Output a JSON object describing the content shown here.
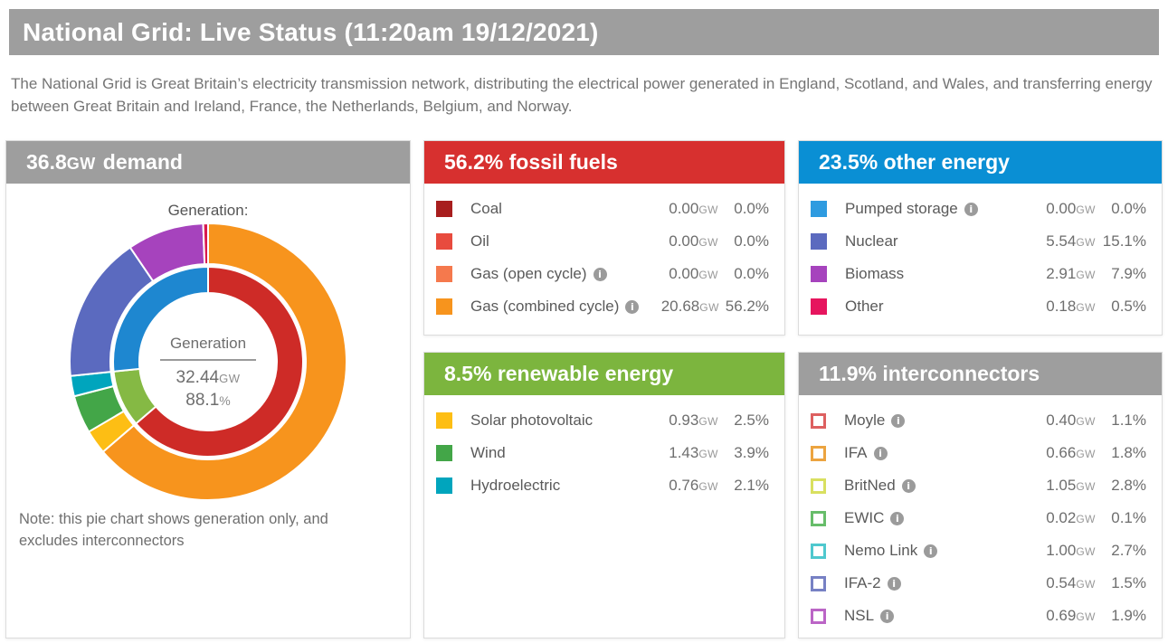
{
  "page": {
    "title": "National Grid: Live Status (11:20am 19/12/2021)",
    "description": "The National Grid is Great Britain’s electricity transmission network, distributing the electrical power generated in England, Scotland, and Wales, and transferring energy between Great Britain and Ireland, France, the Netherlands, Belgium, and Norway."
  },
  "units": {
    "gw": "GW",
    "pct": "%"
  },
  "demand_panel": {
    "header": {
      "value": "36.8",
      "unit": "GW",
      "suffix": "demand"
    },
    "chart_heading": "Generation:",
    "center": {
      "label": "Generation",
      "value": "32.44",
      "unit": "GW",
      "percent": "88.1",
      "percent_unit": "%"
    },
    "note": "Note: this pie chart shows generation only, and excludes interconnectors"
  },
  "chart_data": {
    "type": "pie",
    "title": "Generation:",
    "subtype": "two-ring donut, values are % of total demand (36.8GW), rendered clockwise from 12 o'clock",
    "center_label": "Generation",
    "center_value_gw": 32.44,
    "center_percent_of_demand": 88.1,
    "rings": [
      {
        "name": "groups",
        "position": "inner",
        "segments": [
          {
            "label": "fossil fuels",
            "percent": 56.2,
            "color": "#ce2b27"
          },
          {
            "label": "renewable energy",
            "percent": 8.5,
            "color": "#85b944"
          },
          {
            "label": "other energy",
            "percent": 23.5,
            "color": "#1e87d0"
          }
        ]
      },
      {
        "name": "sources",
        "position": "outer",
        "segments": [
          {
            "label": "Gas (combined cycle)",
            "percent": 56.2,
            "color": "#f7941d"
          },
          {
            "label": "Solar photovoltaic",
            "percent": 2.5,
            "color": "#fdbe14"
          },
          {
            "label": "Wind",
            "percent": 3.9,
            "color": "#43a648"
          },
          {
            "label": "Hydroelectric",
            "percent": 2.1,
            "color": "#00a5bd"
          },
          {
            "label": "Nuclear",
            "percent": 15.1,
            "color": "#5b6abf"
          },
          {
            "label": "Biomass",
            "percent": 7.9,
            "color": "#a643bd"
          },
          {
            "label": "Other",
            "percent": 0.5,
            "color": "#d81a4e"
          }
        ]
      }
    ]
  },
  "panels": {
    "fossil": {
      "header": "56.2% fossil fuels",
      "header_color": "#d7302f",
      "rows": [
        {
          "label": "Coal",
          "swatch": "#a81e1e",
          "filled": true,
          "info": false,
          "gw": "0.00",
          "pct": "0.0"
        },
        {
          "label": "Oil",
          "swatch": "#e84b3e",
          "filled": true,
          "info": false,
          "gw": "0.00",
          "pct": "0.0"
        },
        {
          "label": "Gas (open cycle)",
          "swatch": "#f5794d",
          "filled": true,
          "info": true,
          "gw": "0.00",
          "pct": "0.0"
        },
        {
          "label": "Gas (combined cycle)",
          "swatch": "#f7941d",
          "filled": true,
          "info": true,
          "gw": "20.68",
          "pct": "56.2"
        }
      ]
    },
    "other": {
      "header": "23.5% other energy",
      "header_color": "#0a8fd4",
      "rows": [
        {
          "label": "Pumped storage",
          "swatch": "#2e9be0",
          "filled": true,
          "info": true,
          "gw": "0.00",
          "pct": "0.0"
        },
        {
          "label": "Nuclear",
          "swatch": "#5b6abf",
          "filled": true,
          "info": false,
          "gw": "5.54",
          "pct": "15.1"
        },
        {
          "label": "Biomass",
          "swatch": "#a643bd",
          "filled": true,
          "info": false,
          "gw": "2.91",
          "pct": "7.9"
        },
        {
          "label": "Other",
          "swatch": "#e6155e",
          "filled": true,
          "info": false,
          "gw": "0.18",
          "pct": "0.5"
        }
      ]
    },
    "renewable": {
      "header": "8.5% renewable energy",
      "header_color": "#7cb53e",
      "rows": [
        {
          "label": "Solar photovoltaic",
          "swatch": "#fdbe14",
          "filled": true,
          "info": false,
          "gw": "0.93",
          "pct": "2.5"
        },
        {
          "label": "Wind",
          "swatch": "#43a648",
          "filled": true,
          "info": false,
          "gw": "1.43",
          "pct": "3.9"
        },
        {
          "label": "Hydroelectric",
          "swatch": "#00a5bd",
          "filled": true,
          "info": false,
          "gw": "0.76",
          "pct": "2.1"
        }
      ]
    },
    "interconnectors": {
      "header": "11.9% interconnectors",
      "header_color": "#9e9e9e",
      "rows": [
        {
          "label": "Moyle",
          "swatch": "#dd6060",
          "filled": false,
          "info": true,
          "gw": "0.40",
          "pct": "1.1"
        },
        {
          "label": "IFA",
          "swatch": "#eca440",
          "filled": false,
          "info": true,
          "gw": "0.66",
          "pct": "1.8"
        },
        {
          "label": "BritNed",
          "swatch": "#d9e060",
          "filled": false,
          "info": true,
          "gw": "1.05",
          "pct": "2.8"
        },
        {
          "label": "EWIC",
          "swatch": "#67bd6a",
          "filled": false,
          "info": true,
          "gw": "0.02",
          "pct": "0.1"
        },
        {
          "label": "Nemo Link",
          "swatch": "#4fc8ce",
          "filled": false,
          "info": true,
          "gw": "1.00",
          "pct": "2.7"
        },
        {
          "label": "IFA-2",
          "swatch": "#7781c4",
          "filled": false,
          "info": true,
          "gw": "0.54",
          "pct": "1.5"
        },
        {
          "label": "NSL",
          "swatch": "#bb65c6",
          "filled": false,
          "info": true,
          "gw": "0.69",
          "pct": "1.9"
        }
      ]
    }
  }
}
